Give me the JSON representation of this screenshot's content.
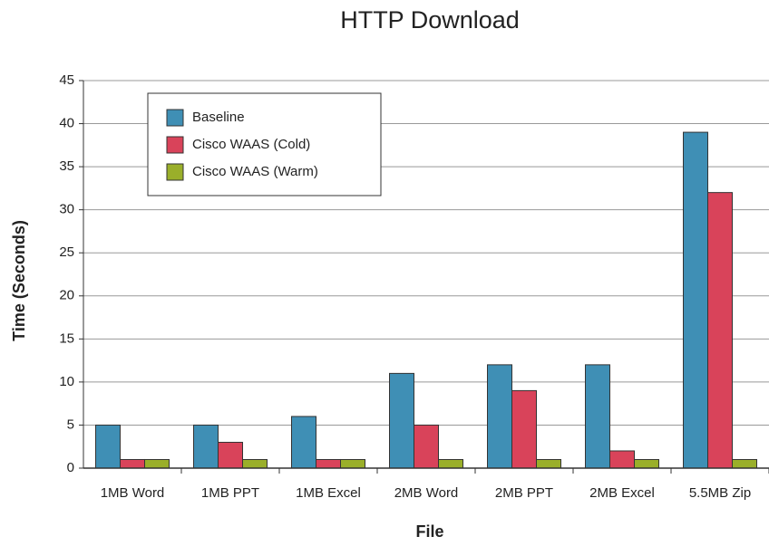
{
  "chart_data": {
    "type": "bar",
    "title": "HTTP Download",
    "x_label": "File",
    "y_label": "Time (Seconds)",
    "categories": [
      "1MB Word",
      "1MB PPT",
      "1MB Excel",
      "2MB Word",
      "2MB PPT",
      "2MB Excel",
      "5.5MB Zip"
    ],
    "series": [
      {
        "name": "Baseline",
        "color": "#3f8fb5",
        "values": [
          5,
          5,
          6,
          11,
          12,
          12,
          39
        ]
      },
      {
        "name": "Cisco WAAS (Cold)",
        "color": "#d9435a",
        "values": [
          1,
          3,
          1,
          5,
          9,
          2,
          32
        ]
      },
      {
        "name": "Cisco WAAS (Warm)",
        "color": "#9aaf2a",
        "values": [
          1,
          1,
          1,
          1,
          1,
          1,
          1
        ]
      }
    ],
    "ylim": [
      0,
      45
    ],
    "yticks": [
      0,
      5,
      10,
      15,
      20,
      25,
      30,
      35,
      40,
      45
    ],
    "grid": true,
    "legend": "upper left"
  }
}
